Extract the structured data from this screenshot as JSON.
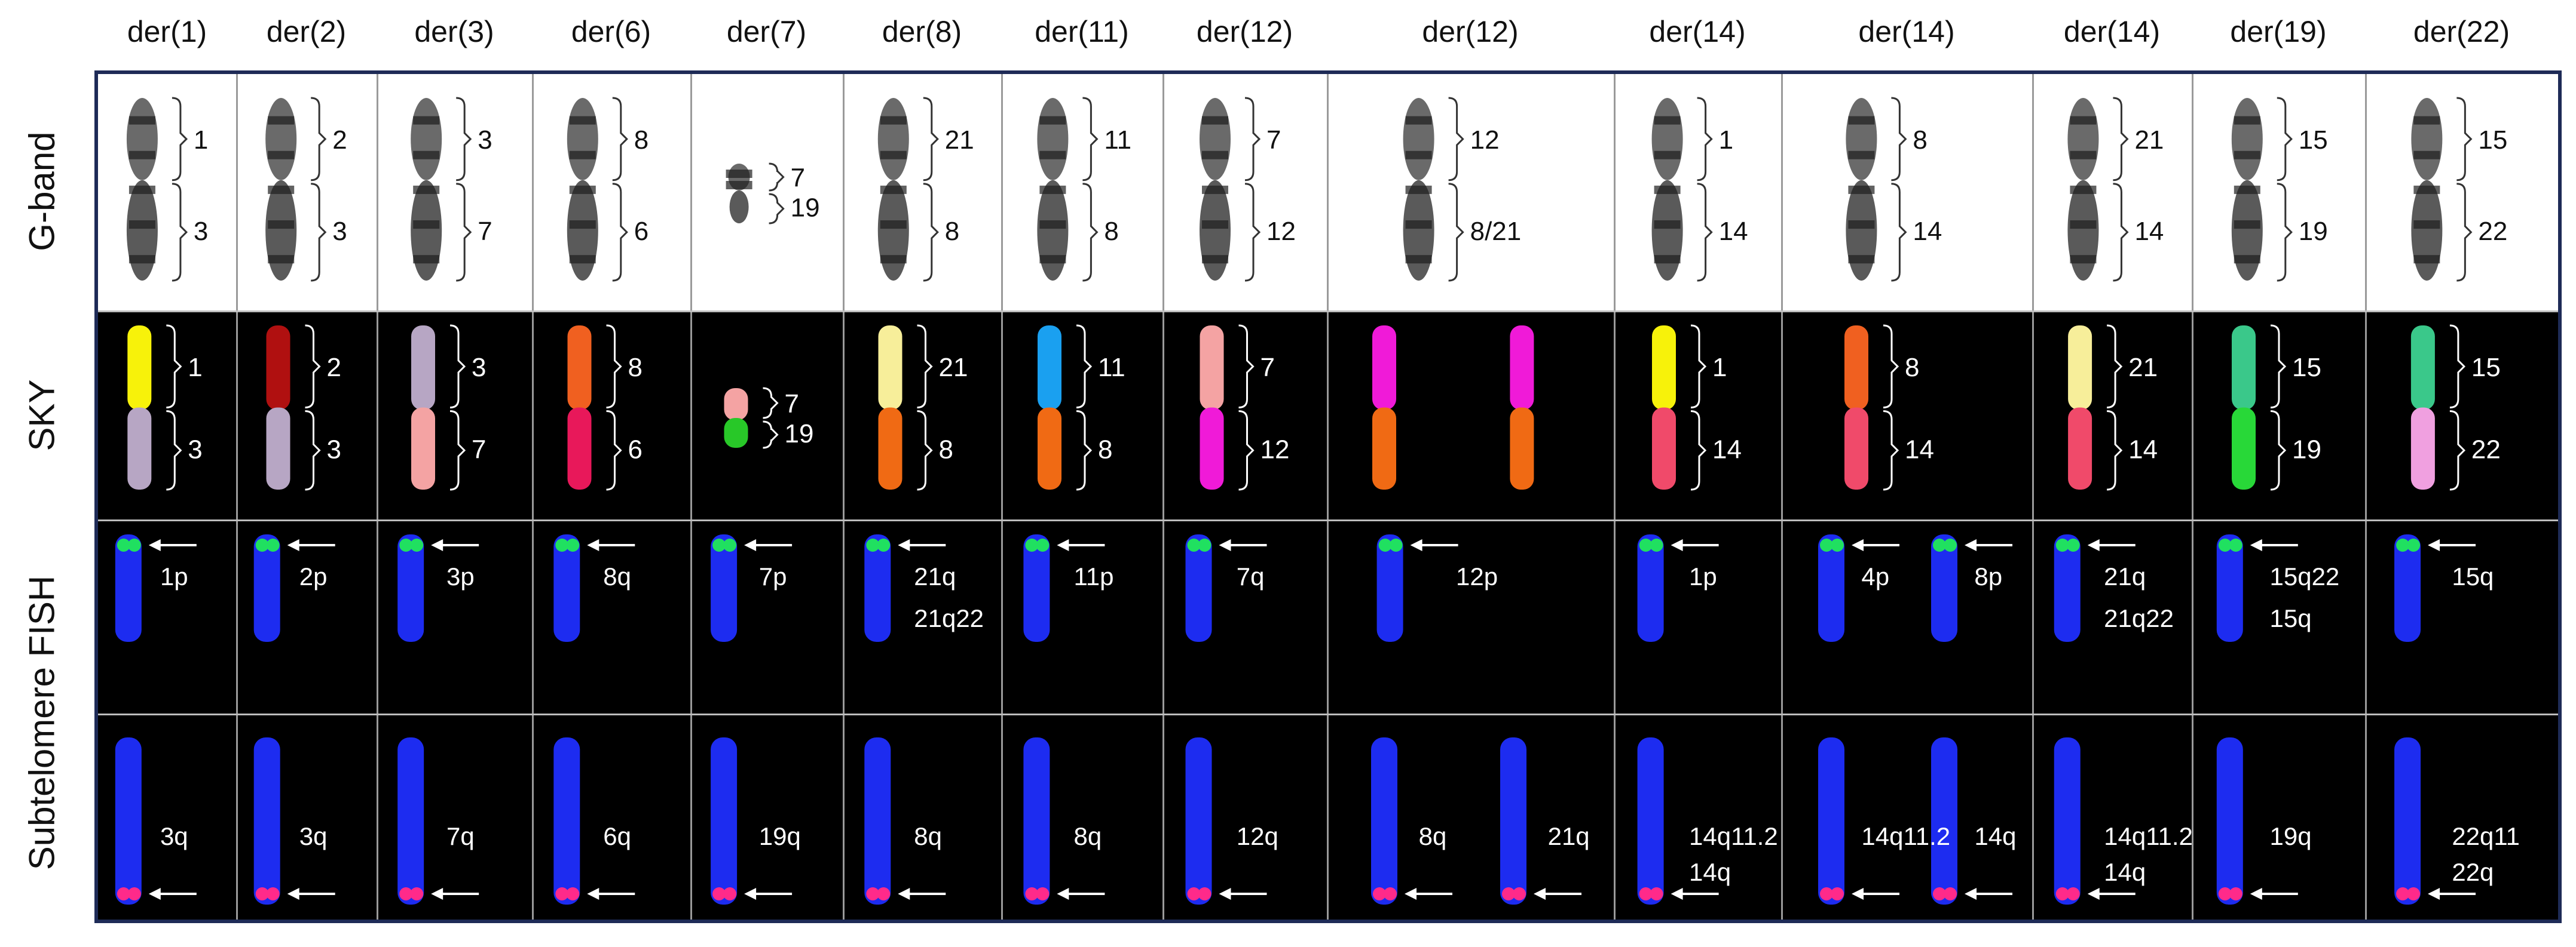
{
  "column_headers": [
    "der(1)",
    "der(2)",
    "der(3)",
    "der(6)",
    "der(7)",
    "der(8)",
    "der(11)",
    "der(12)",
    "der(12)",
    "der(14)",
    "der(14)",
    "der(14)",
    "der(19)",
    "der(22)"
  ],
  "row_labels": [
    "G-band",
    "SKY",
    "Subtelomere FISH"
  ],
  "colors": {
    "frame": "#1e2b57",
    "fish_blue": "#1d2cf0",
    "fish_green": "#20e060",
    "fish_red": "#ff2a8a"
  },
  "gband": [
    {
      "col": 0,
      "labels": [
        "1",
        "3"
      ]
    },
    {
      "col": 1,
      "labels": [
        "2",
        "3"
      ]
    },
    {
      "col": 2,
      "labels": [
        "3",
        "7"
      ]
    },
    {
      "col": 3,
      "labels": [
        "8",
        "6"
      ]
    },
    {
      "col": 4,
      "labels": [
        "7",
        "19"
      ]
    },
    {
      "col": 5,
      "labels": [
        "21",
        "8"
      ]
    },
    {
      "col": 6,
      "labels": [
        "11",
        "8"
      ]
    },
    {
      "col": 7,
      "labels": [
        "7",
        "12"
      ]
    },
    {
      "col": 8,
      "labels": [
        "12",
        "8/21"
      ]
    },
    {
      "col": 9,
      "labels": [
        "1",
        "14"
      ]
    },
    {
      "col": 10,
      "labels": [
        "8",
        "14"
      ]
    },
    {
      "col": 11,
      "labels": [
        "21",
        "14"
      ]
    },
    {
      "col": 12,
      "labels": [
        "15",
        "19"
      ]
    },
    {
      "col": 13,
      "labels": [
        "15",
        "22"
      ]
    }
  ],
  "sky": [
    {
      "col": 0,
      "labels": [
        "1",
        "3"
      ],
      "colors": [
        "#f7f20a",
        "#b7a6c4"
      ]
    },
    {
      "col": 1,
      "labels": [
        "2",
        "3"
      ],
      "colors": [
        "#b01010",
        "#b7a6c4"
      ]
    },
    {
      "col": 2,
      "labels": [
        "3",
        "7"
      ],
      "colors": [
        "#b7a6c4",
        "#f4a3a3"
      ]
    },
    {
      "col": 3,
      "labels": [
        "8",
        "6"
      ],
      "colors": [
        "#f06020",
        "#e8185a"
      ]
    },
    {
      "col": 4,
      "labels": [
        "7",
        "19"
      ],
      "colors": [
        "#f4a3a3",
        "#28c828"
      ]
    },
    {
      "col": 5,
      "labels": [
        "21",
        "8"
      ],
      "colors": [
        "#f7ee9a",
        "#f06a14"
      ]
    },
    {
      "col": 6,
      "labels": [
        "11",
        "8"
      ],
      "colors": [
        "#1aa0f0",
        "#f06a14"
      ]
    },
    {
      "col": 7,
      "labels": [
        "7",
        "12"
      ],
      "colors": [
        "#f4a3a3",
        "#f01ad8"
      ]
    },
    {
      "col": 8,
      "labels": [],
      "colors": [
        "#f01ad8",
        "#f06a14"
      ]
    },
    {
      "col": 9,
      "labels": [
        "1",
        "14"
      ],
      "colors": [
        "#f7f20a",
        "#f04a6a"
      ]
    },
    {
      "col": 10,
      "labels": [
        "8",
        "14"
      ],
      "colors": [
        "#f06020",
        "#f04a6a"
      ]
    },
    {
      "col": 11,
      "labels": [
        "21",
        "14"
      ],
      "colors": [
        "#f7ee9a",
        "#f04a6a"
      ]
    },
    {
      "col": 12,
      "labels": [
        "15",
        "19"
      ],
      "colors": [
        "#3ac88a",
        "#28d838"
      ]
    },
    {
      "col": 13,
      "labels": [
        "15",
        "22"
      ],
      "colors": [
        "#3ac88a",
        "#f0a0e0"
      ]
    }
  ],
  "fish_p": [
    {
      "col": 0,
      "labels": [
        "1p"
      ]
    },
    {
      "col": 1,
      "labels": [
        "2p"
      ]
    },
    {
      "col": 2,
      "labels": [
        "3p"
      ]
    },
    {
      "col": 3,
      "labels": [
        "8q"
      ]
    },
    {
      "col": 4,
      "labels": [
        "7p"
      ]
    },
    {
      "col": 5,
      "labels": [
        "21q",
        "21q22"
      ]
    },
    {
      "col": 6,
      "labels": [
        "11p"
      ]
    },
    {
      "col": 7,
      "labels": [
        "7q"
      ]
    },
    {
      "col": 8,
      "labels": [
        "12p"
      ]
    },
    {
      "col": 9,
      "labels": [
        "1p"
      ]
    },
    {
      "col": 10,
      "labels": [
        "4p",
        "8p"
      ]
    },
    {
      "col": 11,
      "labels": [
        "21q",
        "21q22"
      ]
    },
    {
      "col": 12,
      "labels": [
        "15q22",
        "15q"
      ]
    },
    {
      "col": 13,
      "labels": [
        "15q"
      ]
    }
  ],
  "fish_q": [
    {
      "col": 0,
      "labels": [
        "3q"
      ]
    },
    {
      "col": 1,
      "labels": [
        "3q"
      ]
    },
    {
      "col": 2,
      "labels": [
        "7q"
      ]
    },
    {
      "col": 3,
      "labels": [
        "6q"
      ]
    },
    {
      "col": 4,
      "labels": [
        "19q"
      ]
    },
    {
      "col": 5,
      "labels": [
        "8q"
      ]
    },
    {
      "col": 6,
      "labels": [
        "8q"
      ]
    },
    {
      "col": 7,
      "labels": [
        "12q"
      ]
    },
    {
      "col": 8,
      "labels": [
        "8q",
        "21q"
      ]
    },
    {
      "col": 9,
      "labels": [
        "14q11.2",
        "14q"
      ]
    },
    {
      "col": 10,
      "labels": [
        "14q11.2",
        "14q"
      ]
    },
    {
      "col": 11,
      "labels": [
        "14q11.2",
        "14q"
      ]
    },
    {
      "col": 12,
      "labels": [
        "19q"
      ]
    },
    {
      "col": 13,
      "labels": [
        "22q11",
        "22q"
      ]
    }
  ]
}
